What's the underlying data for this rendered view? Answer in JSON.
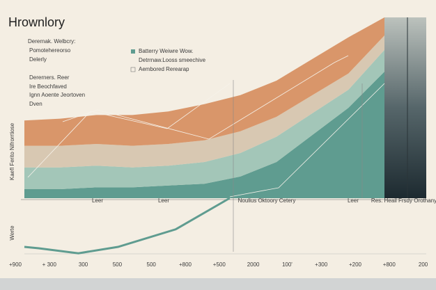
{
  "chart_data": [
    {
      "type": "stacked-area",
      "title": "Hrownlory",
      "notes": [
        "Derernak. Welbcry:",
        "Pomotehereorso",
        "Delerly",
        "Dererners. Reer",
        "Ire Beochfaved",
        "Ignn Aoente Jeortoven",
        "Dven"
      ],
      "y_label": "Kaefl Ferito Nifrorrtiose",
      "x": [
        0,
        1,
        2,
        3,
        4,
        5,
        6,
        7,
        8,
        9,
        10
      ],
      "xlim": [
        0,
        10
      ],
      "ylim": [
        0,
        100
      ],
      "series": [
        {
          "name": "Batterry Weiwre Wow.",
          "color": "#5f9c90",
          "values": [
            5,
            5,
            6,
            6,
            7,
            8,
            12,
            20,
            35,
            50,
            70
          ]
        },
        {
          "name": "Detrrnaw.Looss smeechive",
          "color": "#a3c6b8",
          "values": [
            12,
            12,
            12,
            11,
            11,
            12,
            13,
            14,
            12,
            10,
            12
          ]
        },
        {
          "name": "Aembored Rerearap",
          "color": "#d8c8b2",
          "values": [
            12,
            12,
            12,
            12,
            12,
            12,
            12,
            11,
            10,
            9,
            8
          ]
        },
        {
          "color": "#d9966a",
          "values": [
            14,
            15,
            16,
            17,
            18,
            20,
            20,
            20,
            20,
            20,
            10
          ]
        }
      ],
      "annotations": [
        "Leer",
        "Leer",
        "Noulius Oktoory Cetery",
        "Leer",
        "Res. Heail Frsdy Orothany"
      ]
    },
    {
      "type": "line",
      "y_label": "Werte",
      "x": [
        0,
        0.4,
        1.5,
        2.6,
        4.2,
        5.7
      ],
      "xlim": [
        0,
        10
      ],
      "ylim": [
        0,
        100
      ],
      "series": [
        {
          "color": "#5f9c90",
          "values": [
            12.5,
            10,
            1,
            12.5,
            44,
            100
          ]
        }
      ],
      "x_labels": [
        "+900",
        "+ 300",
        "300",
        "500",
        "500",
        "+800",
        "+500",
        "2000",
        "100'",
        "+300",
        "+200",
        "+800",
        "200"
      ]
    }
  ]
}
